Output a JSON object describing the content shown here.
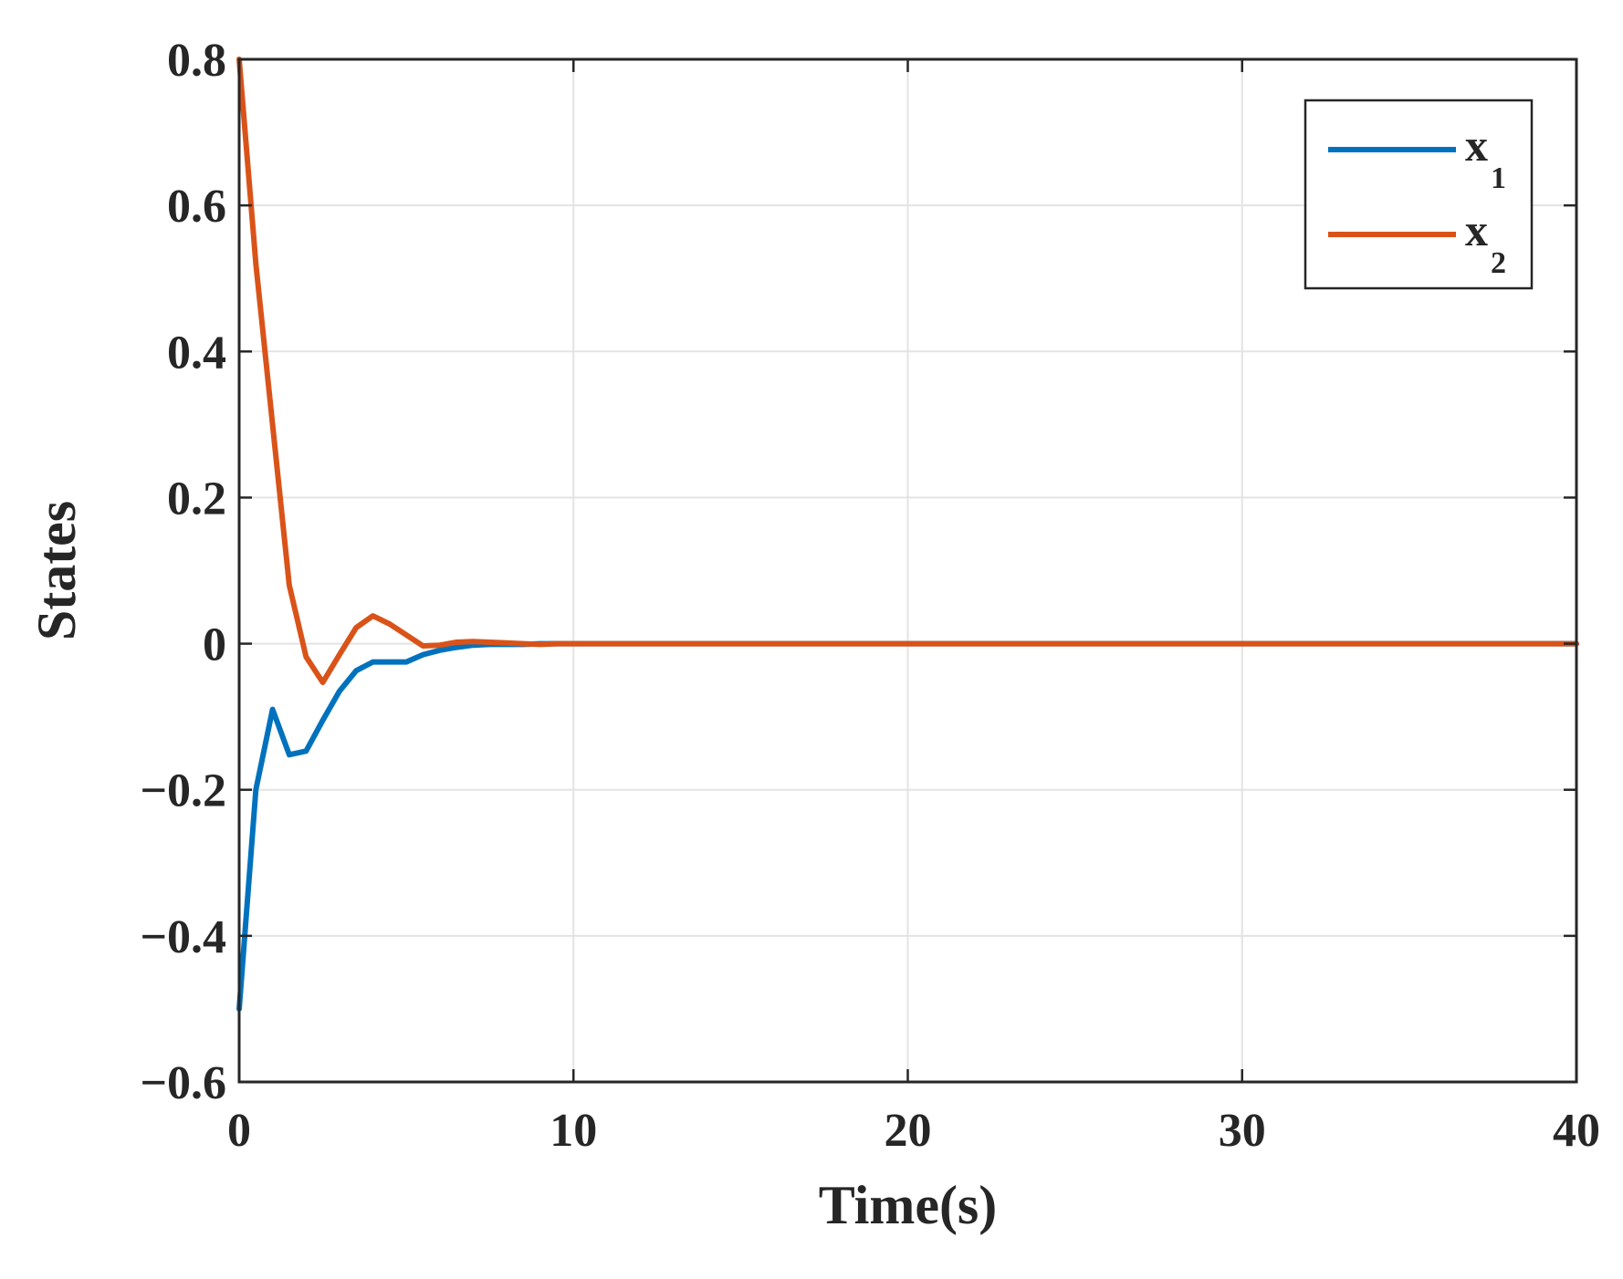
{
  "chart_data": {
    "type": "line",
    "title": "",
    "xlabel": "Time(s)",
    "ylabel": "States",
    "xlim": [
      0,
      40
    ],
    "ylim": [
      -0.6,
      0.8
    ],
    "xticks": [
      0,
      10,
      20,
      30,
      40
    ],
    "xtick_labels": [
      "0",
      "10",
      "20",
      "30",
      "40"
    ],
    "yticks": [
      -0.6,
      -0.4,
      -0.2,
      0,
      0.2,
      0.4,
      0.6,
      0.8
    ],
    "ytick_labels": [
      "−0.6",
      "−0.4",
      "−0.2",
      "0",
      "0.2",
      "0.4",
      "0.6",
      "0.8"
    ],
    "grid": true,
    "legend_position": "top-right",
    "series": [
      {
        "name": "x",
        "subscript": "1",
        "color": "#0072BD",
        "x": [
          0,
          0.5,
          1.0,
          1.5,
          2.0,
          2.5,
          3.0,
          3.5,
          4.0,
          4.5,
          5.0,
          5.5,
          6.0,
          6.5,
          7.0,
          7.5,
          8.0,
          8.5,
          9.0,
          9.5,
          10,
          15,
          20,
          25,
          30,
          35,
          40
        ],
        "y": [
          -0.5,
          -0.2,
          -0.09,
          -0.152,
          -0.147,
          -0.105,
          -0.065,
          -0.037,
          -0.025,
          -0.025,
          -0.025,
          -0.015,
          -0.009,
          -0.005,
          -0.002,
          -0.001,
          -0.001,
          -0.001,
          0,
          0,
          0,
          0,
          0,
          0,
          0,
          0,
          0
        ]
      },
      {
        "name": "x",
        "subscript": "2",
        "color": "#D95319",
        "x": [
          0,
          0.5,
          1.0,
          1.5,
          2.0,
          2.5,
          3.0,
          3.5,
          4.0,
          4.5,
          5.0,
          5.5,
          6.0,
          6.5,
          7.0,
          7.5,
          8.0,
          8.5,
          9.0,
          9.5,
          10,
          15,
          20,
          25,
          30,
          35,
          40
        ],
        "y": [
          0.8,
          0.52,
          0.3,
          0.08,
          -0.018,
          -0.053,
          -0.015,
          0.022,
          0.038,
          0.027,
          0.012,
          -0.003,
          -0.002,
          0.002,
          0.003,
          0.002,
          0.001,
          0,
          -0.001,
          0,
          0,
          0,
          0,
          0,
          0,
          0,
          0
        ]
      }
    ]
  }
}
